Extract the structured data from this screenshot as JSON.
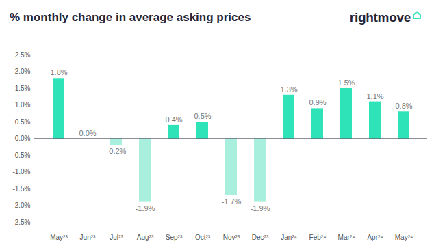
{
  "chart_data": {
    "type": "bar",
    "title": "% monthly change in average asking prices",
    "annotations": [
      "rightmove"
    ],
    "categories": [
      "May²³",
      "Jun²³",
      "Jul²³",
      "Aug²³",
      "Sep²³",
      "Oct²³",
      "Nov²³",
      "Dec²³",
      "Jan²⁴",
      "Feb²⁴",
      "Mar²⁴",
      "Apr²⁴",
      "May²⁴"
    ],
    "values": [
      1.8,
      0.0,
      -0.2,
      -1.9,
      0.4,
      0.5,
      -1.7,
      -1.9,
      1.3,
      0.9,
      1.5,
      1.1,
      0.8
    ],
    "value_labels": [
      "1.8%",
      "0.0%",
      "-0.2%",
      "-1.9%",
      "0.4%",
      "0.5%",
      "-1.7%",
      "-1.9%",
      "1.3%",
      "0.9%",
      "1.5%",
      "1.1%",
      "0.8%"
    ],
    "colors": [
      "#2ee3b8",
      "#2ee3b8",
      "#a9efdd",
      "#a9efdd",
      "#2ee3b8",
      "#2ee3b8",
      "#a9efdd",
      "#a9efdd",
      "#2ee3b8",
      "#2ee3b8",
      "#2ee3b8",
      "#2ee3b8",
      "#2ee3b8"
    ],
    "ylim": [
      -2.5,
      2.5
    ],
    "yticks": [
      {
        "value": -2.5,
        "label": "-2.5%"
      },
      {
        "value": -2.0,
        "label": "-2.0%"
      },
      {
        "value": -1.5,
        "label": "-1.5%"
      },
      {
        "value": -1.0,
        "label": "-1.0%"
      },
      {
        "value": -0.5,
        "label": "-0.5%"
      },
      {
        "value": 0.0,
        "label": "0.0%"
      },
      {
        "value": 0.5,
        "label": "0.5%"
      },
      {
        "value": 1.0,
        "label": "1.0%"
      },
      {
        "value": 1.5,
        "label": "1.5%"
      },
      {
        "value": 2.0,
        "label": "2.0%"
      },
      {
        "value": 2.5,
        "label": "2.5%"
      }
    ],
    "grid": false,
    "data_labels": true
  }
}
